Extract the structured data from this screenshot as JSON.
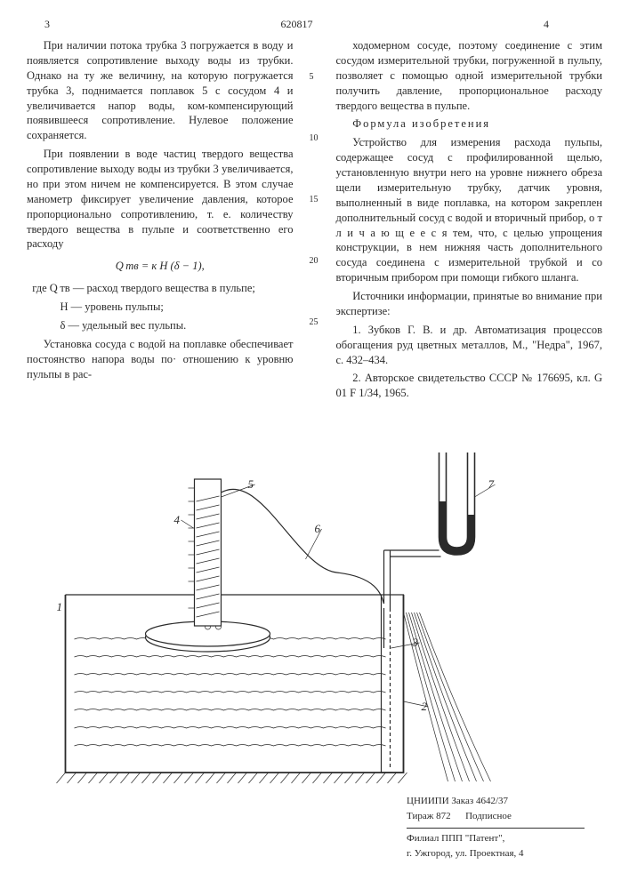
{
  "header": {
    "left_num": "3",
    "doc_num": "620817",
    "right_num": "4"
  },
  "line_markers": [
    "5",
    "10",
    "15",
    "20",
    "25"
  ],
  "left_col": {
    "p1": "При наличии потока трубка 3 погружается в воду и появляется сопротивление выходу воды из трубки. Однако на ту же величину, на которую погружается трубка 3, поднимается поплавок 5 с сосудом 4 и увеличивается напор воды, ком-компенсирующий появившееся сопротивление. Нулевое положение сохраняется.",
    "p2": "При появлении в воде частиц твердого вещества сопротивление выходу воды из трубки 3 увеличивается, но при этом ничем не компенсируется. В этом случае манометр фиксирует увеличение давления, которое пропорционально сопротивлению, т. е. количеству твердого вещества в пульпе и соответственно его расходу",
    "formula": "Q тв = к H (δ − 1),",
    "def1_lhs": "где Q тв",
    "def1_rhs": "— расход твердого вещества в пульпе;",
    "def2_lhs": "H",
    "def2_rhs": "— уровень пульпы;",
    "def3_lhs": "δ",
    "def3_rhs": "— удельный вес пульпы.",
    "p3": "Установка сосуда с водой на поплавке обеспечивает постоянство напора воды по· отношению к уровню пульпы в рас-"
  },
  "right_col": {
    "p1": "ходомерном сосуде, поэтому соединение с этим сосудом измерительной трубки, погруженной в пульпу, позволяет с помощью одной измерительной трубки получить давление, пропорциональное расходу твердого вещества в пульпе.",
    "claim_title": "Формула изобретения",
    "p2": "Устройство для измерения расхода пульпы, содержащее сосуд с профилированной щелью, установленную внутри него на уровне нижнего обреза щели измерительную трубку, датчик уровня, выполненный в виде поплавка, на котором закреплен дополнительный сосуд с водой и вторичный прибор, о т л и ч а ю щ е е с я  тем, что, с целью упрощения конструкции, в нем нижняя часть дополнительного сосуда соединена с измерительной трубкой и со вторичным прибором при помощи гибкого шланга.",
    "src_title": "Источники информации, принятые во внимание при экспертизе:",
    "src1": "1. Зубков Г. В. и др. Автоматизация процессов обогащения руд цветных металлов, М., \"Недра\", 1967, с. 432–434.",
    "src2": "2. Авторское свидетельство СССР № 176695, кл. G 01 F 1/34, 1965."
  },
  "footer": {
    "line1": "ЦНИИПИ Заказ 4642/37",
    "line2_a": "Тираж 872",
    "line2_b": "Подписное",
    "line3": "Филиал ППП \"Патент\",",
    "line4": "г. Ужгород, ул. Проектная, 4"
  },
  "diagram": {
    "callouts": [
      "1",
      "2",
      "3",
      "4",
      "5",
      "6",
      "7"
    ],
    "stroke": "#2a2a2a",
    "water_fill": "none",
    "hatch_stroke": "#2a2a2a",
    "line_w": 1.2,
    "thin_w": 0.7,
    "font_size": 13
  }
}
